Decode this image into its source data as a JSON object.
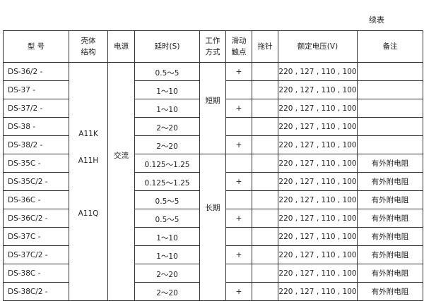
{
  "caption": "续表",
  "headers": [
    "型  号",
    "壳体\n结构",
    "电源",
    "延时(S)",
    "工作\n方式",
    "滑动\n触点",
    "拖针",
    "额定电压(V)",
    "备注"
  ],
  "shell_groups": [
    "A11K",
    "A11H",
    "A11Q"
  ],
  "power": "交流",
  "work_modes": [
    "短期",
    "长期"
  ],
  "rows": [
    {
      "model": "DS-36/2 -",
      "delay": "0.5～5",
      "slide": "+",
      "voltage": "220 , 127 , 110 , 100",
      "note": ""
    },
    {
      "model": "DS-37  -",
      "delay": "1～10",
      "slide": "",
      "voltage": "220 , 127 , 110 , 100",
      "note": ""
    },
    {
      "model": "DS-37/2 -",
      "delay": "1～10",
      "slide": "+",
      "voltage": "220 , 127 , 110 , 100",
      "note": ""
    },
    {
      "model": "DS-38  -",
      "delay": "2～20",
      "slide": "",
      "voltage": "220 , 127 , 110 , 100",
      "note": ""
    },
    {
      "model": "DS-38/2 -",
      "delay": "2～20",
      "slide": "+",
      "voltage": "220 , 127 , 110 , 100",
      "note": ""
    },
    {
      "model": "DS-35C  -",
      "delay": "0.125～1.25",
      "slide": "",
      "voltage": "220 , 127 , 110 , 100",
      "note": "有外附电阻"
    },
    {
      "model": "DS-35C/2 -",
      "delay": "0.125～1.25",
      "slide": "+",
      "voltage": "220 , 127 , 110 , 100",
      "note": "有外附电阻"
    },
    {
      "model": "DS-36C  -",
      "delay": "0.5～5",
      "slide": "",
      "voltage": "220 , 127 , 110 , 100",
      "note": "有外附电阻"
    },
    {
      "model": "DS-36C/2 -",
      "delay": "0.5～5",
      "slide": "+",
      "voltage": "220 , 127 , 110 , 100",
      "note": "有外附电阻"
    },
    {
      "model": "DS-37C  -",
      "delay": "1～10",
      "slide": "",
      "voltage": "220 , 127 , 110 , 100",
      "note": "有外附电阻"
    },
    {
      "model": "DS-37C/2 -",
      "delay": "1～10",
      "slide": "+",
      "voltage": "220 , 127 , 110 , 100",
      "note": "有外附电阻"
    },
    {
      "model": "DS-38C  -",
      "delay": "2～20",
      "slide": "",
      "voltage": "220 , 127 , 110 , 100",
      "note": "有外附电阻"
    },
    {
      "model": "DS-38C/2  -",
      "delay": "2～20",
      "slide": "+",
      "voltage": "220 , 127 , 110 , 100",
      "note": "有外附电阻"
    }
  ]
}
